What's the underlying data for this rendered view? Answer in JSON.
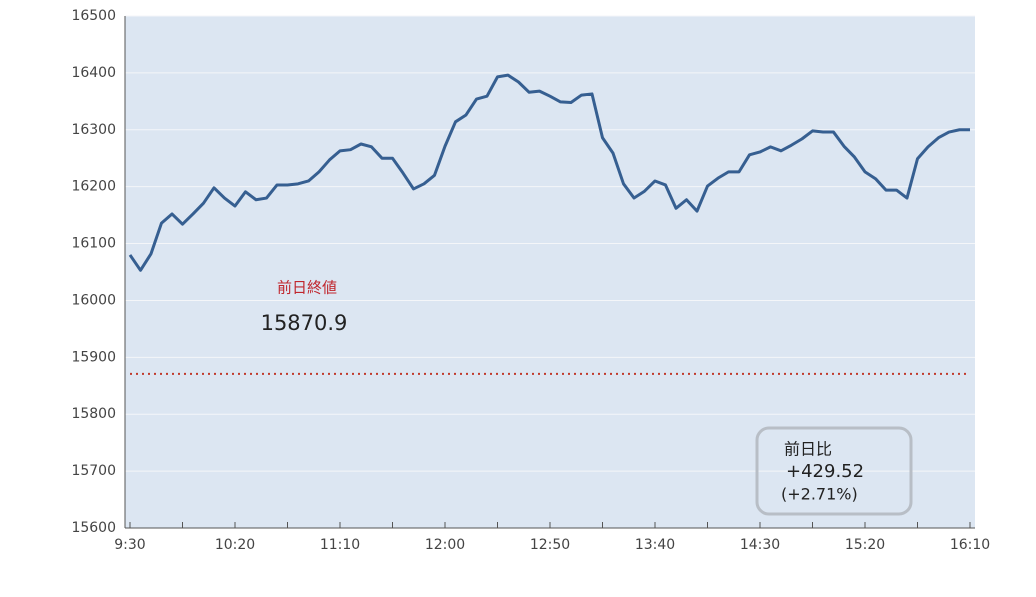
{
  "chart_data": {
    "type": "line",
    "categories": [
      "9:30",
      null,
      null,
      null,
      null,
      null,
      null,
      null,
      null,
      null,
      "10:20",
      null,
      null,
      null,
      null,
      null,
      null,
      null,
      null,
      null,
      "11:10",
      null,
      null,
      null,
      null,
      null,
      null,
      null,
      null,
      null,
      "12:00",
      null,
      null,
      null,
      null,
      null,
      null,
      null,
      null,
      null,
      "12:50",
      null,
      null,
      null,
      null,
      null,
      null,
      null,
      null,
      null,
      "13:40",
      null,
      null,
      null,
      null,
      null,
      null,
      null,
      null,
      null,
      "14:30",
      null,
      null,
      null,
      null,
      null,
      null,
      null,
      null,
      null,
      "15:20",
      null,
      null,
      null,
      null,
      null,
      null,
      null,
      null,
      null,
      "16:10"
    ],
    "series": [
      {
        "color": "#365f91",
        "values": [
          16080,
          16053,
          16082,
          16136,
          16152,
          16134,
          16152,
          16171,
          16198,
          16180,
          16166,
          16191,
          16177,
          16180,
          16203,
          16203,
          16205,
          16210,
          16226,
          16247,
          16263,
          16265,
          16275,
          16270,
          16250,
          16250,
          16224,
          16196,
          16205,
          16220,
          16271,
          16314,
          16326,
          16354,
          16359,
          16393,
          16396,
          16384,
          16366,
          16368,
          16359,
          16349,
          16348,
          16361,
          16363,
          16286,
          16259,
          16205,
          16180,
          16192,
          16210,
          16203,
          16162,
          16177,
          16157,
          16201,
          16215,
          16226,
          16226,
          16256,
          16261,
          16270,
          16263,
          16273,
          16284,
          16298,
          16296,
          16296,
          16271,
          16252,
          16226,
          16214,
          16194,
          16194,
          16180,
          16249,
          16270,
          16286,
          16296,
          16300,
          16300
        ]
      }
    ],
    "ylim": [
      15600,
      16500
    ],
    "yticks": [
      15600,
      15700,
      15800,
      15900,
      16000,
      16100,
      16200,
      16300,
      16400,
      16500
    ],
    "grid": true,
    "reference_line": {
      "label": "前日終値",
      "value": 15870.9,
      "color": "#c0392b"
    },
    "change_box": {
      "title": "前日比",
      "change": "+429.52",
      "percent": "(+2.71%)"
    }
  }
}
